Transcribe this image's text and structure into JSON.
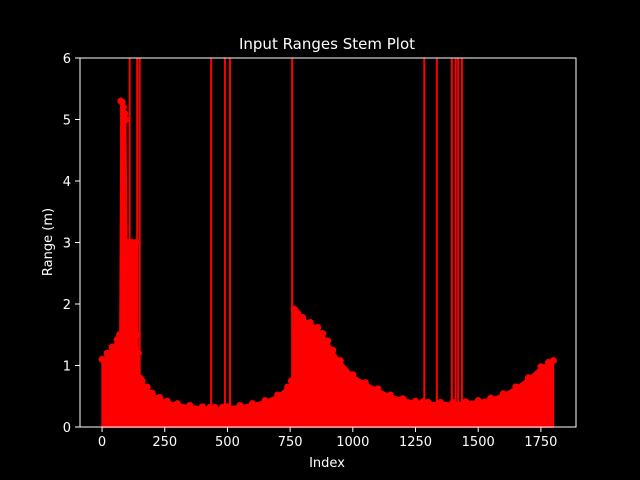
{
  "chart_data": {
    "type": "stem",
    "title": "Input Ranges Stem Plot",
    "xlabel": "Index",
    "ylabel": "Range (m)",
    "xlim": [
      -88,
      1890
    ],
    "ylim": [
      0,
      6
    ],
    "x_ticks": [
      0,
      250,
      500,
      750,
      1000,
      1250,
      1500,
      1750
    ],
    "y_ticks": [
      0,
      1,
      2,
      3,
      4,
      5,
      6
    ],
    "grid": false,
    "legend": "none",
    "colors": {
      "background": "#000000",
      "foreground": "#ffffff",
      "series": "#ff0000"
    },
    "series": [
      {
        "x": [
          0,
          20,
          40,
          60,
          70,
          75,
          80,
          85,
          90,
          95,
          100,
          105,
          110,
          115,
          120,
          125,
          130,
          135,
          140,
          145,
          150,
          155,
          160,
          180,
          200,
          230,
          260,
          300,
          350,
          400,
          430,
          450,
          480,
          500,
          550,
          600,
          650,
          700,
          740,
          755,
          760,
          765,
          770,
          780,
          800,
          830,
          860,
          880,
          900,
          920,
          950,
          1000,
          1050,
          1100,
          1150,
          1200,
          1250,
          1280,
          1300,
          1350,
          1400,
          1450,
          1500,
          1550,
          1600,
          1650,
          1700,
          1750,
          1780,
          1800
        ],
        "y": [
          1.1,
          1.2,
          1.3,
          1.42,
          1.5,
          5.3,
          5.28,
          5.2,
          5.1,
          5.0,
          3.0,
          2.9,
          2.8,
          3.0,
          3.0,
          2.9,
          2.8,
          3.0,
          1.5,
          1.2,
          0.8,
          0.78,
          0.75,
          0.65,
          0.55,
          0.48,
          0.42,
          0.38,
          0.35,
          0.33,
          0.32,
          0.32,
          0.32,
          0.33,
          0.35,
          0.38,
          0.43,
          0.52,
          0.65,
          0.75,
          0.76,
          1.92,
          1.9,
          1.85,
          1.78,
          1.7,
          1.62,
          1.52,
          1.4,
          1.25,
          1.08,
          0.85,
          0.72,
          0.62,
          0.52,
          0.46,
          0.42,
          0.41,
          0.4,
          0.4,
          0.4,
          0.41,
          0.43,
          0.47,
          0.54,
          0.65,
          0.8,
          0.98,
          1.05,
          1.08
        ]
      }
    ],
    "out_of_range_stems": [
      110,
      140,
      150,
      435,
      490,
      510,
      758,
      1285,
      1335,
      1395,
      1410,
      1420,
      1435
    ],
    "dense_fill": true
  }
}
